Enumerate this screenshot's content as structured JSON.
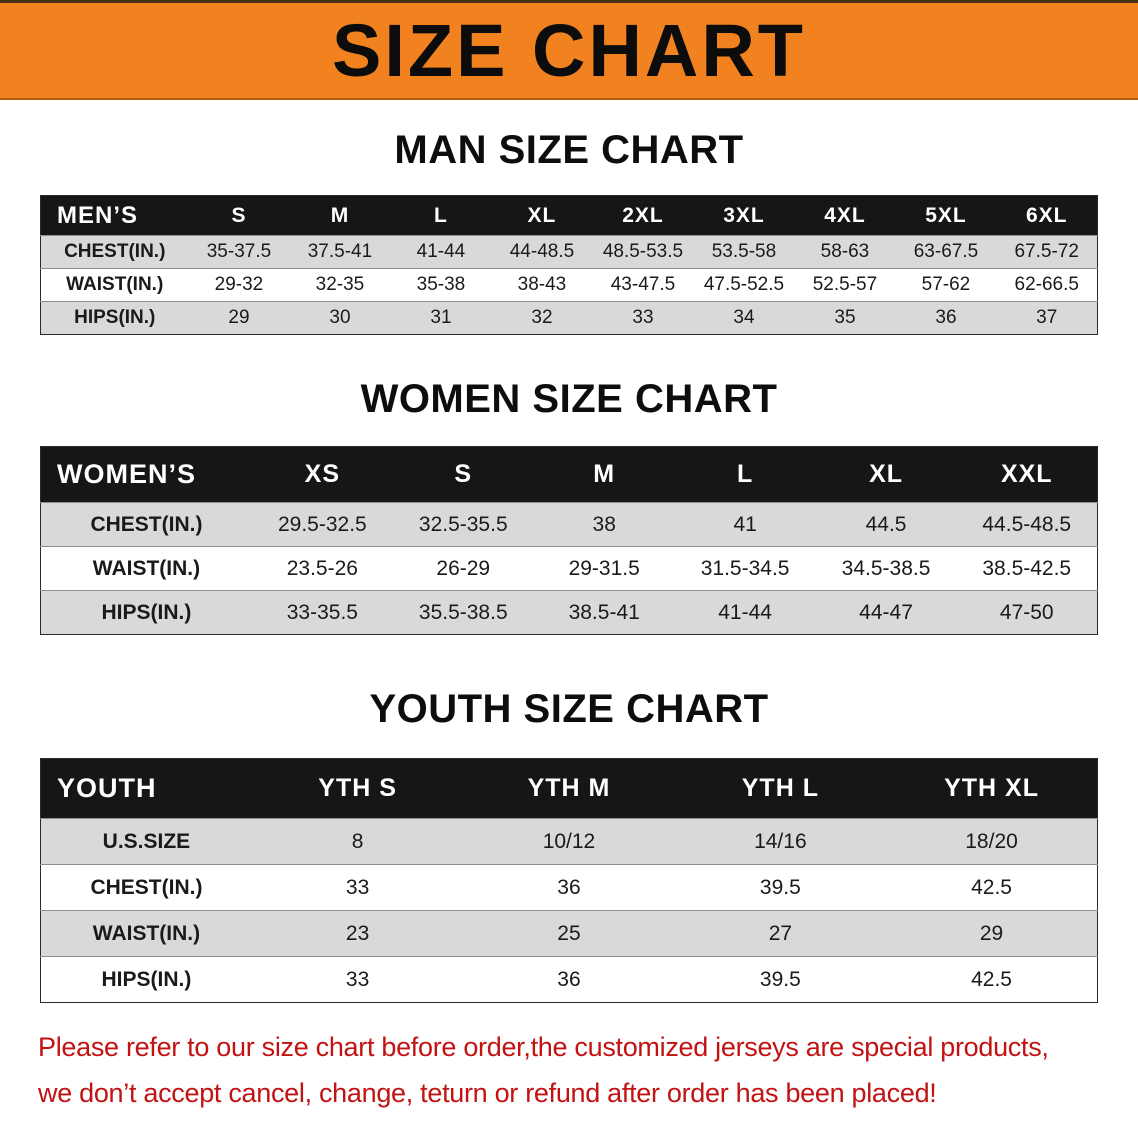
{
  "colors": {
    "banner_bg": "#f1821f",
    "header_bg": "#161616",
    "row_stripe": "#d9d9d9",
    "notice_red": "#c31212"
  },
  "banner": {
    "title": "SIZE CHART"
  },
  "sections": [
    {
      "heading": "MAN SIZE CHART",
      "table": {
        "title": "MEN’S",
        "columns": [
          "S",
          "M",
          "L",
          "XL",
          "2XL",
          "3XL",
          "4XL",
          "5XL",
          "6XL"
        ],
        "rows": [
          {
            "label": "CHEST(IN.)",
            "values": [
              "35-37.5",
              "37.5-41",
              "41-44",
              "44-48.5",
              "48.5-53.5",
              "53.5-58",
              "58-63",
              "63-67.5",
              "67.5-72"
            ]
          },
          {
            "label": "WAIST(IN.)",
            "values": [
              "29-32",
              "32-35",
              "35-38",
              "38-43",
              "43-47.5",
              "47.5-52.5",
              "52.5-57",
              "57-62",
              "62-66.5"
            ]
          },
          {
            "label": "HIPS(IN.)",
            "values": [
              "29",
              "30",
              "31",
              "32",
              "33",
              "34",
              "35",
              "36",
              "37"
            ]
          }
        ]
      }
    },
    {
      "heading": "WOMEN SIZE CHART",
      "table": {
        "title": "WOMEN’S",
        "columns": [
          "XS",
          "S",
          "M",
          "L",
          "XL",
          "XXL"
        ],
        "rows": [
          {
            "label": "CHEST(IN.)",
            "values": [
              "29.5-32.5",
              "32.5-35.5",
              "38",
              "41",
              "44.5",
              "44.5-48.5"
            ]
          },
          {
            "label": "WAIST(IN.)",
            "values": [
              "23.5-26",
              "26-29",
              "29-31.5",
              "31.5-34.5",
              "34.5-38.5",
              "38.5-42.5"
            ]
          },
          {
            "label": "HIPS(IN.)",
            "values": [
              "33-35.5",
              "35.5-38.5",
              "38.5-41",
              "41-44",
              "44-47",
              "47-50"
            ]
          }
        ]
      }
    },
    {
      "heading": "YOUTH SIZE CHART",
      "table": {
        "title": "YOUTH",
        "columns": [
          "YTH S",
          "YTH M",
          "YTH L",
          "YTH XL"
        ],
        "rows": [
          {
            "label": "U.S.SIZE",
            "values": [
              "8",
              "10/12",
              "14/16",
              "18/20"
            ]
          },
          {
            "label": "CHEST(IN.)",
            "values": [
              "33",
              "36",
              "39.5",
              "42.5"
            ]
          },
          {
            "label": "WAIST(IN.)",
            "values": [
              "23",
              "25",
              "27",
              "29"
            ]
          },
          {
            "label": "HIPS(IN.)",
            "values": [
              "33",
              "36",
              "39.5",
              "42.5"
            ]
          }
        ]
      }
    }
  ],
  "notice": {
    "line1": "Please refer to our size chart before order,the customized jerseys are special products,",
    "line2": "we don’t accept cancel, change, teturn or refund after order has been placed!"
  }
}
